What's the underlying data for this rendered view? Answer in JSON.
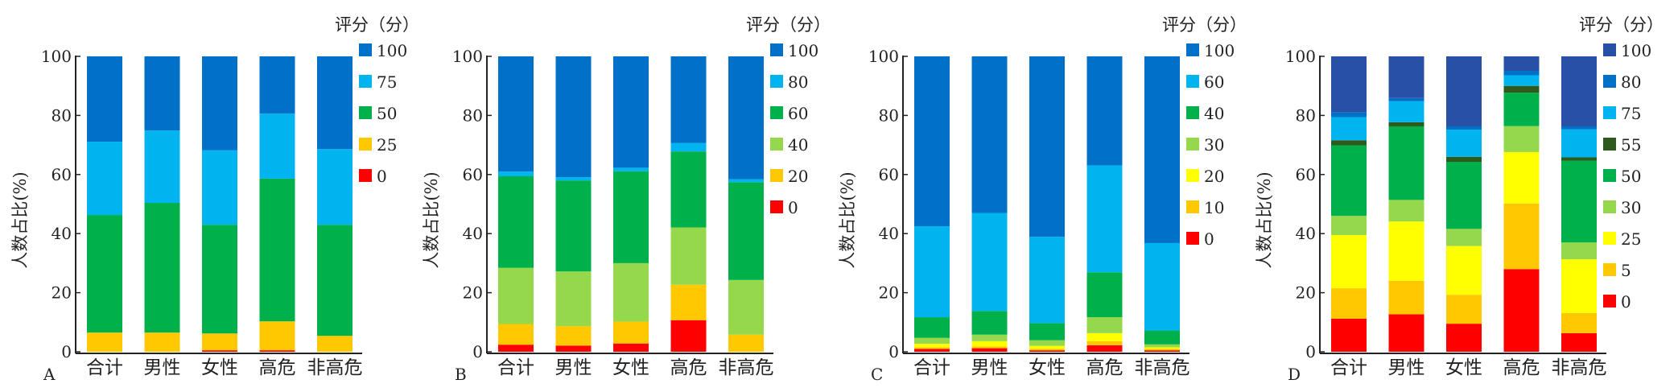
{
  "chart_data": [
    {
      "type": "bar",
      "stacked": true,
      "panel_label": "A",
      "legend_title": "评分（分）",
      "ylabel": "人数占比(%)",
      "ylim": [
        0,
        100
      ],
      "yticks": [
        "0",
        "20",
        "40",
        "60",
        "80",
        "100"
      ],
      "categories": [
        "合计",
        "男性",
        "女性",
        "高危",
        "非高危"
      ],
      "series": [
        {
          "name": "0",
          "color": "#ff0000",
          "values": [
            0,
            0,
            0.5,
            0.5,
            0
          ]
        },
        {
          "name": "25",
          "color": "#ffc800",
          "values": [
            6.5,
            6.5,
            5.7,
            9.8,
            5.4
          ]
        },
        {
          "name": "50",
          "color": "#00b04a",
          "values": [
            39.8,
            43.9,
            36.8,
            48.3,
            37.6
          ]
        },
        {
          "name": "75",
          "color": "#00b4f0",
          "values": [
            24.8,
            24.5,
            25.2,
            22.0,
            25.6
          ]
        },
        {
          "name": "100",
          "color": "#0070c8",
          "values": [
            28.9,
            25.1,
            31.8,
            19.4,
            31.4
          ]
        }
      ]
    },
    {
      "type": "bar",
      "stacked": true,
      "panel_label": "B",
      "legend_title": "评分（分）",
      "ylabel": "人数占比(%)",
      "ylim": [
        0,
        100
      ],
      "yticks": [
        "0",
        "20",
        "40",
        "60",
        "80",
        "100"
      ],
      "categories": [
        "合计",
        "男性",
        "女性",
        "高危",
        "非高危"
      ],
      "series": [
        {
          "name": "0",
          "color": "#ff0000",
          "values": [
            2.4,
            2.1,
            2.8,
            10.7,
            0
          ]
        },
        {
          "name": "20",
          "color": "#ffc800",
          "values": [
            7.0,
            6.6,
            7.4,
            12.0,
            5.8
          ]
        },
        {
          "name": "40",
          "color": "#96d84c",
          "values": [
            19.0,
            18.5,
            19.8,
            19.4,
            18.5
          ]
        },
        {
          "name": "60",
          "color": "#00b04a",
          "values": [
            31.0,
            30.8,
            31.1,
            25.7,
            33.1
          ]
        },
        {
          "name": "80",
          "color": "#00b4f0",
          "values": [
            1.6,
            1.1,
            1.2,
            2.9,
            1.0
          ]
        },
        {
          "name": "100",
          "color": "#0070c8",
          "values": [
            39.0,
            40.9,
            37.7,
            29.3,
            41.6
          ]
        }
      ]
    },
    {
      "type": "bar",
      "stacked": true,
      "panel_label": "C",
      "legend_title": "评分（分）",
      "ylabel": "人数占比(%)",
      "ylim": [
        0,
        100
      ],
      "yticks": [
        "0",
        "20",
        "40",
        "60",
        "80",
        "100"
      ],
      "categories": [
        "合计",
        "男性",
        "女性",
        "高危",
        "非高危"
      ],
      "series": [
        {
          "name": "0",
          "color": "#ff0000",
          "values": [
            1.0,
            1.2,
            0.5,
            2.2,
            0.5
          ]
        },
        {
          "name": "10",
          "color": "#ffc800",
          "values": [
            0.5,
            0.6,
            0.5,
            1.4,
            0.5
          ]
        },
        {
          "name": "20",
          "color": "#ffff00",
          "values": [
            1.2,
            1.8,
            1.0,
            2.7,
            0.5
          ]
        },
        {
          "name": "30",
          "color": "#96d84c",
          "values": [
            2.0,
            2.2,
            1.9,
            5.4,
            1.0
          ]
        },
        {
          "name": "40",
          "color": "#00b04a",
          "values": [
            7.0,
            8.0,
            5.8,
            15.2,
            4.7
          ]
        },
        {
          "name": "60",
          "color": "#00b4f0",
          "values": [
            30.8,
            33.2,
            29.2,
            36.2,
            29.6
          ]
        },
        {
          "name": "100",
          "color": "#0070c8",
          "values": [
            57.5,
            53.0,
            61.1,
            36.9,
            63.2
          ]
        }
      ]
    },
    {
      "type": "bar",
      "stacked": true,
      "panel_label": "D",
      "legend_title": "评分（分）",
      "ylabel": "人数占比(%)",
      "ylim": [
        0,
        100
      ],
      "yticks": [
        "0",
        "20",
        "40",
        "60",
        "80",
        "100"
      ],
      "categories": [
        "合计",
        "男性",
        "女性",
        "高危",
        "非高危"
      ],
      "series": [
        {
          "name": "0",
          "color": "#ff0000",
          "values": [
            11.2,
            12.7,
            9.5,
            28.0,
            6.3
          ]
        },
        {
          "name": "5",
          "color": "#ffc800",
          "values": [
            10.3,
            11.3,
            9.8,
            22.2,
            6.8
          ]
        },
        {
          "name": "25",
          "color": "#ffff00",
          "values": [
            18.0,
            20.1,
            16.5,
            17.4,
            18.2
          ]
        },
        {
          "name": "30",
          "color": "#96d84c",
          "values": [
            6.5,
            7.3,
            5.8,
            8.8,
            5.7
          ]
        },
        {
          "name": "50",
          "color": "#00b04a",
          "values": [
            23.9,
            24.9,
            22.7,
            11.3,
            27.7
          ]
        },
        {
          "name": "55",
          "color": "#2e5a1c",
          "values": [
            1.7,
            1.4,
            1.7,
            2.3,
            1.1
          ]
        },
        {
          "name": "75",
          "color": "#00b4f0",
          "values": [
            7.8,
            7.1,
            9.2,
            3.6,
            9.5
          ]
        },
        {
          "name": "80",
          "color": "#0070c8",
          "values": [
            1.7,
            1.1,
            1.1,
            1.5,
            1.0
          ]
        },
        {
          "name": "100",
          "color": "#2850a5",
          "values": [
            18.9,
            14.1,
            23.7,
            4.9,
            23.7
          ]
        }
      ]
    }
  ]
}
